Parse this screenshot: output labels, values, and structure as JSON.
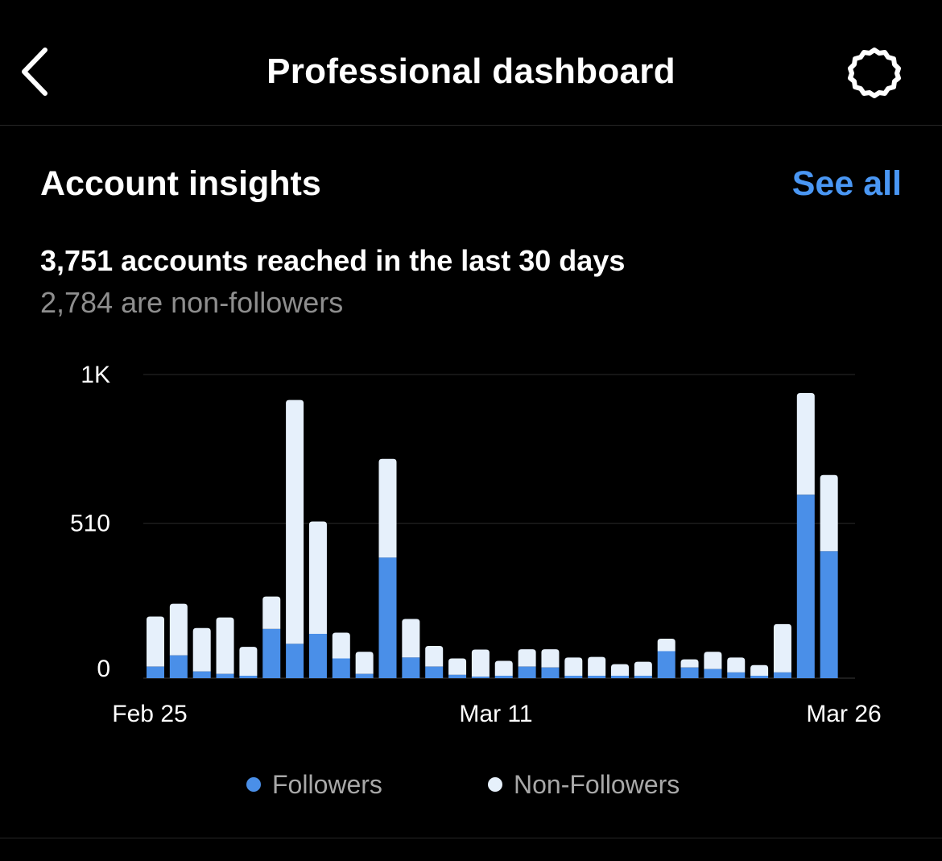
{
  "header": {
    "title": "Professional dashboard",
    "back_icon": "chevron-left-icon",
    "settings_icon": "gear-icon"
  },
  "insights": {
    "title": "Account insights",
    "see_all_label": "See all",
    "accounts_reached_text": "3,751 accounts reached in the last 30 days",
    "non_followers_text": "2,784 are non-followers"
  },
  "colors": {
    "background": "#000000",
    "accent": "#4a97f4",
    "followers": "#4a8fe8",
    "non_followers": "#e6f0fb",
    "muted_text": "#8e8e8e",
    "gridline": "#2a2a2a"
  },
  "chart_data": {
    "type": "bar",
    "stacked": true,
    "x_tick_labels": [
      "Feb 25",
      "Mar 11",
      "Mar 26"
    ],
    "y_tick_labels": [
      "1K",
      "510",
      "0"
    ],
    "y_ticks": [
      1000,
      510,
      0
    ],
    "ylim": [
      0,
      1000
    ],
    "grid": true,
    "legend_position": "bottom",
    "categories": [
      "Feb 25",
      "Feb 26",
      "Feb 27",
      "Feb 28",
      "Feb 29",
      "Mar 1",
      "Mar 2",
      "Mar 3",
      "Mar 4",
      "Mar 5",
      "Mar 6",
      "Mar 7",
      "Mar 8",
      "Mar 9",
      "Mar 10",
      "Mar 11",
      "Mar 12",
      "Mar 13",
      "Mar 14",
      "Mar 15",
      "Mar 16",
      "Mar 17",
      "Mar 18",
      "Mar 19",
      "Mar 20",
      "Mar 21",
      "Mar 22",
      "Mar 23",
      "Mar 24",
      "Mar 25",
      "Mar 26"
    ],
    "series": [
      {
        "name": "Followers",
        "values": [
          38,
          75,
          22,
          14,
          8,
          162,
          113,
          146,
          65,
          14,
          397,
          68,
          38,
          11,
          5,
          8,
          38,
          35,
          8,
          8,
          8,
          8,
          89,
          35,
          30,
          19,
          8,
          19,
          604,
          418,
          0
        ]
      },
      {
        "name": "Non-Followers",
        "values": [
          165,
          170,
          143,
          186,
          95,
          107,
          803,
          370,
          85,
          73,
          325,
          127,
          68,
          54,
          89,
          49,
          57,
          60,
          60,
          62,
          38,
          46,
          41,
          27,
          57,
          49,
          35,
          159,
          335,
          251,
          0
        ]
      }
    ]
  },
  "legend": {
    "followers_label": "Followers",
    "non_followers_label": "Non-Followers"
  }
}
